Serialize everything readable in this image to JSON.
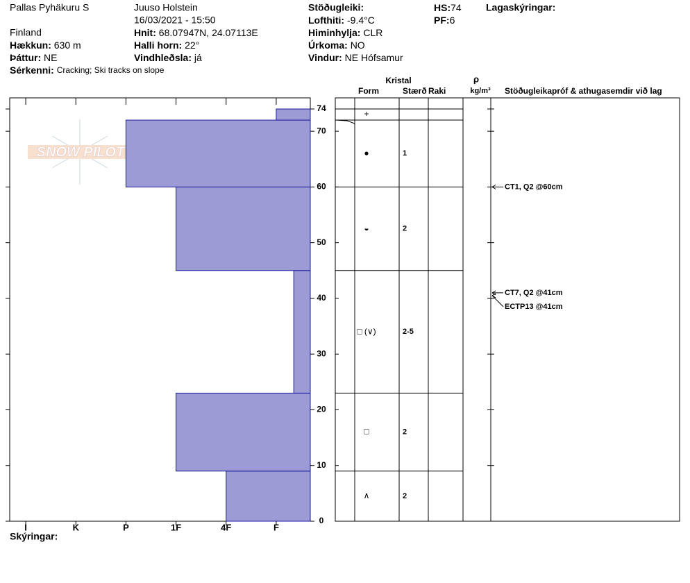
{
  "header": {
    "site": "Pallas Pyhäkuru S",
    "country": "Finland",
    "observer": "Juuso Holstein",
    "datetime": "16/03/2021 - 15:50",
    "elevation": {
      "label": "Hækkun:",
      "value": "630 m"
    },
    "aspect": {
      "label": "Þáttur:",
      "value": "NE"
    },
    "features": {
      "label": "Sérkenni:",
      "value": "Cracking;  Ski tracks on slope"
    },
    "coords": {
      "label": "Hnit:",
      "value": "68.07947N, 24.07113E"
    },
    "slope": {
      "label": "Halli horn:",
      "value": "22°"
    },
    "wind_loading": {
      "label": "Vindhleðsla:",
      "value": "já"
    },
    "stability": {
      "label": "Stöðugleiki:"
    },
    "air_temp": {
      "label": "Lofthiti:",
      "value": "-9.4°C"
    },
    "sky": {
      "label": "Himinhylja:",
      "value": "CLR"
    },
    "precip": {
      "label": "Úrkoma:",
      "value": "NO"
    },
    "wind": {
      "label": "Vindur:",
      "value": "NE Hófsamur"
    },
    "hs": {
      "label": "HS:",
      "value": 74
    },
    "pf": {
      "label": "PF:",
      "value": 6
    },
    "layer_notes": {
      "label": "Lagaskýringar:"
    },
    "notes": {
      "label": "Skýringar:"
    },
    "logo": "SNOW PILOT"
  },
  "columns": {
    "crystal": "Kristal",
    "form": "Form",
    "size": "Stærð",
    "moisture": "Raki",
    "density_symbol": "ρ",
    "density_unit": "kg/m³",
    "tests": "Stöðugleikapróf & athugasemdir við lag"
  },
  "chart_data": {
    "type": "bar",
    "orientation": "horizontal",
    "color": "#9c9bd6",
    "edge_color": "#1a1a9c",
    "xlim": [
      6.32,
      0.32
    ],
    "xticks": [
      {
        "value": 6,
        "label": "I"
      },
      {
        "value": 5,
        "label": "K"
      },
      {
        "value": 4,
        "label": "P"
      },
      {
        "value": 3,
        "label": "1F"
      },
      {
        "value": 2,
        "label": "4F"
      },
      {
        "value": 1,
        "label": "F"
      }
    ],
    "ylim": [
      0,
      74
    ],
    "yticks": [
      0,
      10,
      20,
      30,
      40,
      50,
      60,
      70,
      74
    ],
    "layers": {
      "bottom": [
        0,
        9,
        23,
        45,
        60,
        72
      ],
      "top": [
        9,
        23,
        45,
        60,
        72,
        74
      ],
      "hardness": [
        2,
        3,
        0.65,
        3,
        4,
        1
      ],
      "form": [
        "∧",
        "□",
        "□ (∨)",
        "◒",
        "●",
        "+"
      ],
      "size": [
        "2",
        "2",
        "2-5",
        "2",
        "1",
        null
      ]
    },
    "tests": [
      {
        "label": "CT1, Q2 @60cm",
        "height": 60
      },
      {
        "label": "CT7, Q2 @41cm",
        "height": 41
      },
      {
        "label": "ECTP13 @41cm",
        "height": 41
      }
    ]
  }
}
